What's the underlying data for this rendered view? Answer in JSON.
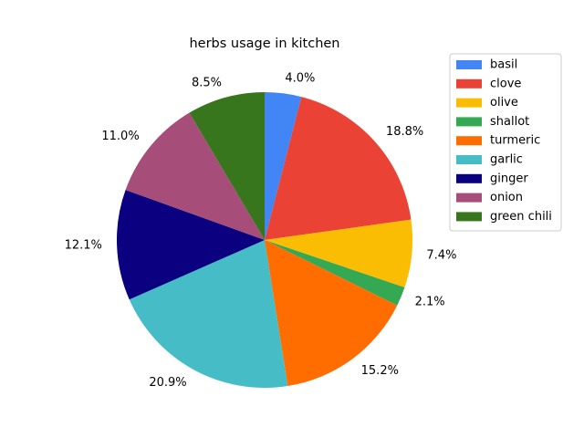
{
  "chart_data": {
    "type": "pie",
    "title": "herbs usage in kitchen",
    "start_angle_deg": 90,
    "direction": "clockwise",
    "legend_position": "upper-right-outside",
    "slices": [
      {
        "label": "basil",
        "value": 4.0,
        "value_label": "4.0%",
        "color": "#4285f4"
      },
      {
        "label": "clove",
        "value": 18.8,
        "value_label": "18.8%",
        "color": "#ea4335"
      },
      {
        "label": "olive",
        "value": 7.4,
        "value_label": "7.4%",
        "color": "#fbbc04"
      },
      {
        "label": "shallot",
        "value": 2.1,
        "value_label": "2.1%",
        "color": "#34a853"
      },
      {
        "label": "turmeric",
        "value": 15.2,
        "value_label": "15.2%",
        "color": "#ff6d01"
      },
      {
        "label": "garlic",
        "value": 20.9,
        "value_label": "20.9%",
        "color": "#46bdc6"
      },
      {
        "label": "ginger",
        "value": 12.1,
        "value_label": "12.1%",
        "color": "#0b0080"
      },
      {
        "label": "onion",
        "value": 11.0,
        "value_label": "11.0%",
        "color": "#a64d79"
      },
      {
        "label": "green chili",
        "value": 8.5,
        "value_label": "8.5%",
        "color": "#38761d"
      }
    ]
  }
}
